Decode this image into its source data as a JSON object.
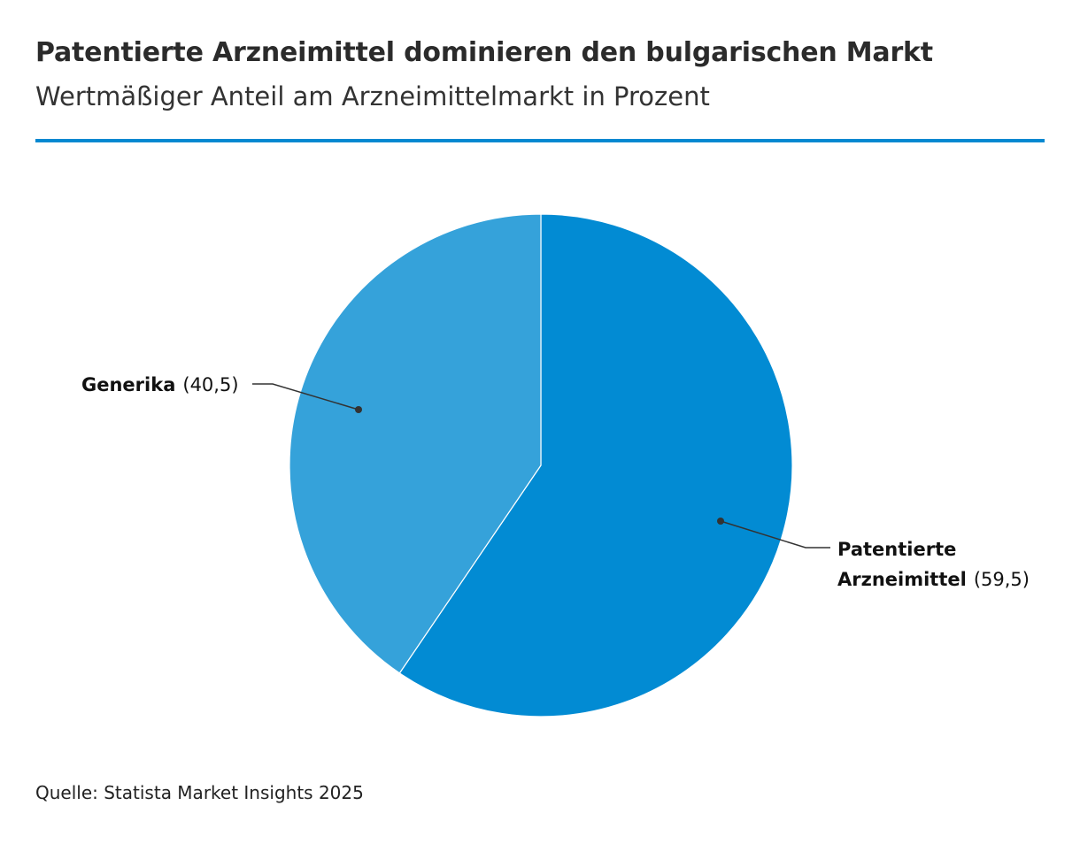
{
  "title": "Patentierte Arzneimittel dominieren den bulgarischen Markt",
  "subtitle": "Wertmäßiger Anteil am Arzneimittelmarkt in Prozent",
  "source": "Quelle: Statista Market Insights 2025",
  "colors": {
    "rule": "#0288d1",
    "leader": "#333333",
    "slice_border": "#ffffff"
  },
  "chart_data": {
    "type": "pie",
    "title": "Patentierte Arzneimittel dominieren den bulgarischen Markt",
    "subtitle": "Wertmäßiger Anteil am Arzneimittelmarkt in Prozent",
    "slices": [
      {
        "name": "Patentierte Arzneimittel",
        "name_lines": [
          "Patentierte",
          "Arzneimittel"
        ],
        "value": 59.5,
        "value_label": "(59,5)",
        "color": "#028bd3"
      },
      {
        "name": "Generika",
        "name_lines": [
          "Generika"
        ],
        "value": 40.5,
        "value_label": "(40,5)",
        "color": "#35a2da"
      }
    ],
    "start_angle": "12 o'clock",
    "direction": "clockwise",
    "legend": "none (direct labels)"
  }
}
